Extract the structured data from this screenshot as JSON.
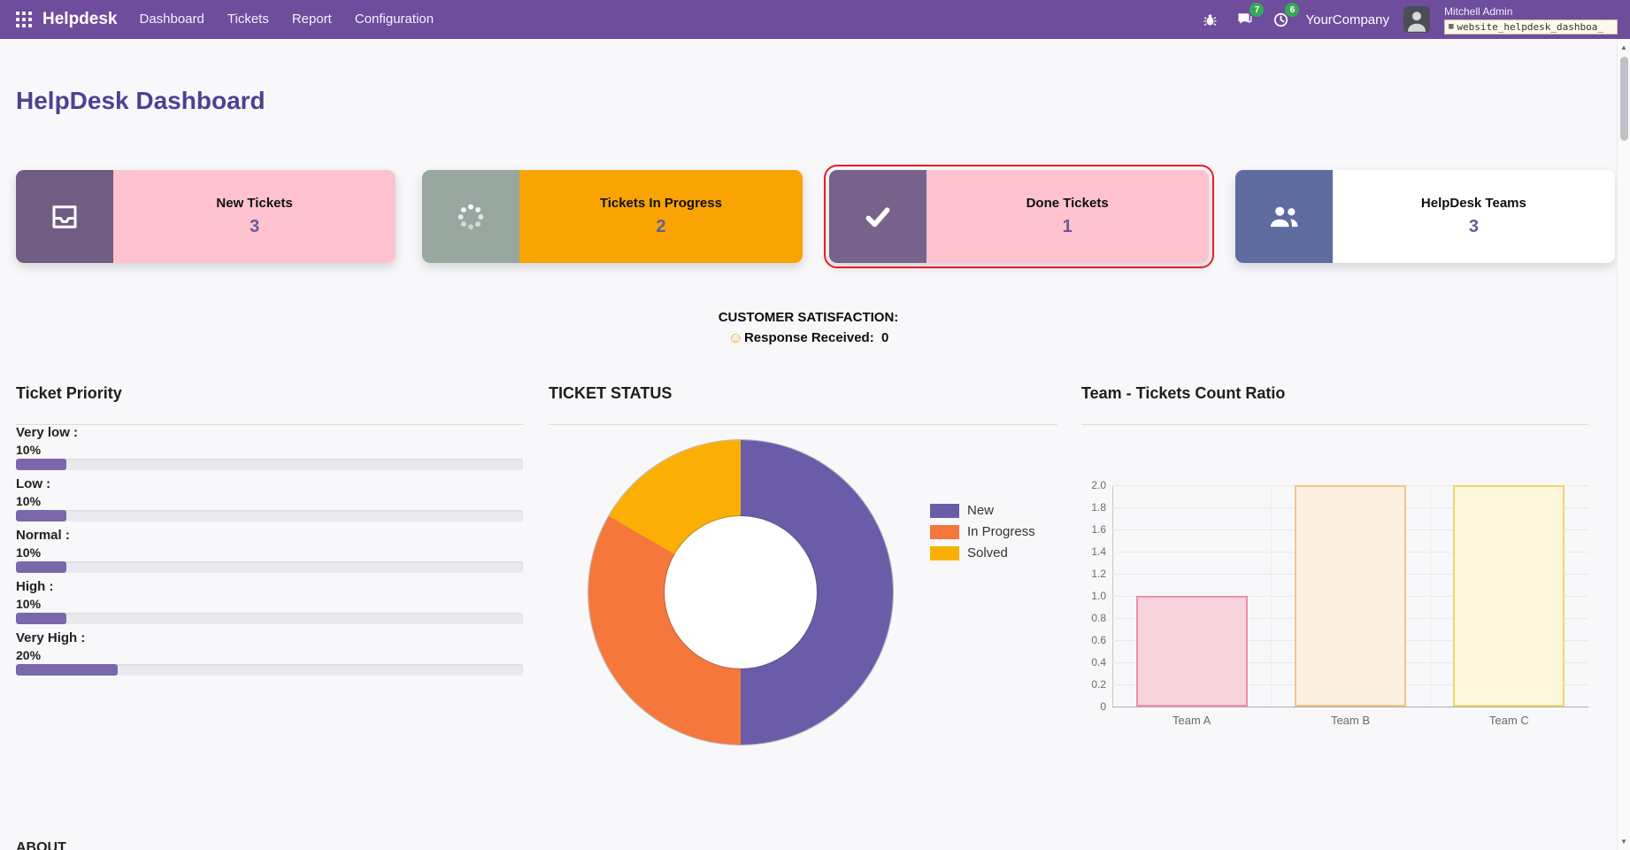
{
  "colors": {
    "navbar": "#6d4d9c",
    "title": "#4c4193",
    "badge": "#37a857",
    "highlight": "#ea1c24"
  },
  "navbar": {
    "brand": "Helpdesk",
    "menu": [
      {
        "label": "Dashboard"
      },
      {
        "label": "Tickets"
      },
      {
        "label": "Report"
      },
      {
        "label": "Configuration"
      }
    ],
    "messages_badge": "7",
    "activities_badge": "6",
    "company": "YourCompany",
    "user_name": "Mitchell Admin",
    "debug_box": "website_helpdesk_dashboa_"
  },
  "page_title": "HelpDesk Dashboard",
  "cards": [
    {
      "label": "New Tickets",
      "count": "3",
      "body_color": "#ffc2cf",
      "icon_bg": "#6f5d83",
      "icon": "inbox-icon",
      "highlighted": false
    },
    {
      "label": "Tickets In Progress",
      "count": "2",
      "body_color": "#f9a402",
      "icon_bg": "#98a79f",
      "icon": "spinner-icon",
      "highlighted": false
    },
    {
      "label": "Done Tickets",
      "count": "1",
      "body_color": "#ffc2cf",
      "icon_bg": "#77628b",
      "icon": "check-icon",
      "highlighted": true
    },
    {
      "label": "HelpDesk Teams",
      "count": "3",
      "body_color": "#ffffff",
      "icon_bg": "#5d6b9f",
      "icon": "users-icon",
      "highlighted": false
    }
  ],
  "satisfaction": {
    "title": "CUSTOMER SATISFACTION:",
    "emoji": "☺",
    "response_label": "Response Received:",
    "response_value": "0"
  },
  "priority": {
    "title": "Ticket Priority",
    "bar_color": "#7a68ad",
    "items": [
      {
        "label": "Very low :",
        "percent": "10%",
        "value": 10
      },
      {
        "label": "Low :",
        "percent": "10%",
        "value": 10
      },
      {
        "label": "Normal :",
        "percent": "10%",
        "value": 10
      },
      {
        "label": "High :",
        "percent": "10%",
        "value": 10
      },
      {
        "label": "Very High :",
        "percent": "20%",
        "value": 20
      }
    ]
  },
  "status_section": {
    "title": "TICKET STATUS"
  },
  "team_section": {
    "title": "Team - Tickets Count Ratio"
  },
  "chart_data": [
    {
      "type": "pie",
      "donut": true,
      "title": "TICKET STATUS",
      "labels": [
        "New",
        "In Progress",
        "Solved"
      ],
      "values": [
        3,
        2,
        1
      ],
      "colors": [
        "#6b5ca9",
        "#f5773b",
        "#fbaf05"
      ],
      "legend_position": "right"
    },
    {
      "type": "bar",
      "title": "Team - Tickets Count Ratio",
      "categories": [
        "Team A",
        "Team B",
        "Team C"
      ],
      "values": [
        1,
        2,
        2
      ],
      "ylim": [
        0,
        2
      ],
      "ytick_step": 0.2,
      "bar_fills": [
        "#f8d3de",
        "#fbf0e0",
        "#fdf7dd"
      ],
      "bar_borders": [
        "#ec8fab",
        "#f3c48e",
        "#f1d56e"
      ],
      "grid": true
    },
    {
      "type": "bar",
      "title": "Ticket Priority",
      "categories": [
        "Very low",
        "Low",
        "Normal",
        "High",
        "Very High"
      ],
      "values": [
        10,
        10,
        10,
        10,
        20
      ],
      "unit": "%"
    }
  ],
  "partial_heading": "ABOUT"
}
